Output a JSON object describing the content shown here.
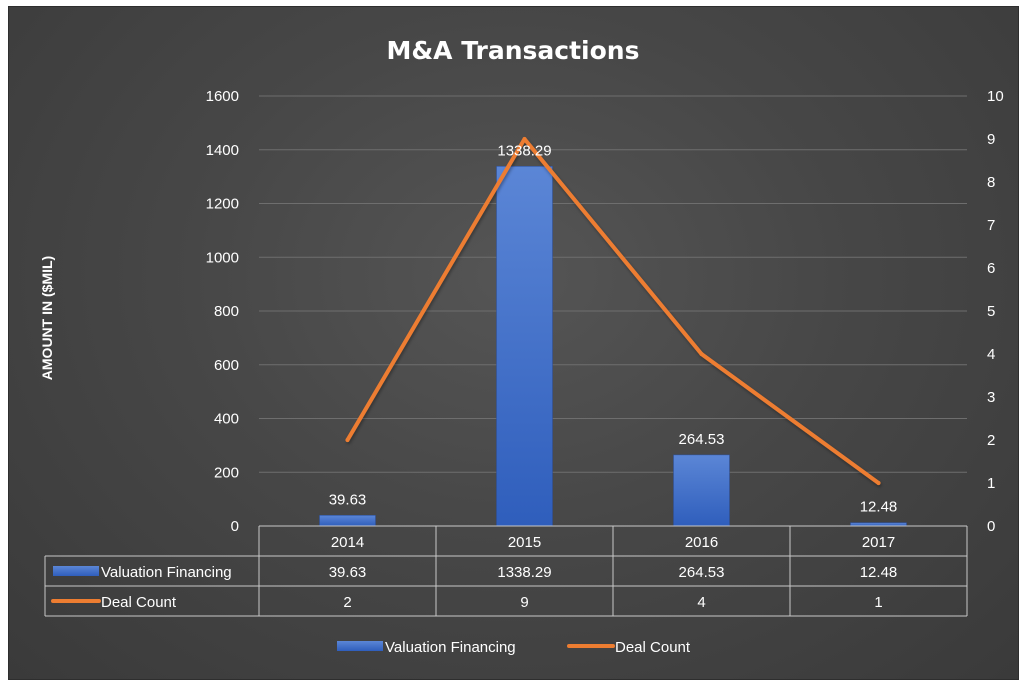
{
  "chart_data": {
    "type": "bar",
    "title": "M&A Transactions",
    "ylabel": "AMOUNT IN ($MIL)",
    "categories": [
      "2014",
      "2015",
      "2016",
      "2017"
    ],
    "ylim": [
      0,
      1600
    ],
    "yticks": [
      "0",
      "200",
      "400",
      "600",
      "800",
      "1000",
      "1200",
      "1400",
      "1600"
    ],
    "y2lim": [
      0,
      10
    ],
    "y2ticks": [
      "0",
      "1",
      "2",
      "3",
      "4",
      "5",
      "6",
      "7",
      "8",
      "9",
      "10"
    ],
    "series": [
      {
        "name": "Valuation Financing",
        "type": "bar",
        "axis": "left",
        "values": [
          39.63,
          1338.29,
          264.53,
          12.48
        ],
        "labels": [
          "39.63",
          "1338.29",
          "264.53",
          "12.48"
        ],
        "color": "#4472c4"
      },
      {
        "name": "Deal Count",
        "type": "line",
        "axis": "right",
        "values": [
          2,
          9,
          4,
          1
        ],
        "labels": [
          "2",
          "9",
          "4",
          "1"
        ],
        "color": "#ed7d31"
      }
    ],
    "grid": true,
    "legend_position": "bottom",
    "data_table": true
  }
}
